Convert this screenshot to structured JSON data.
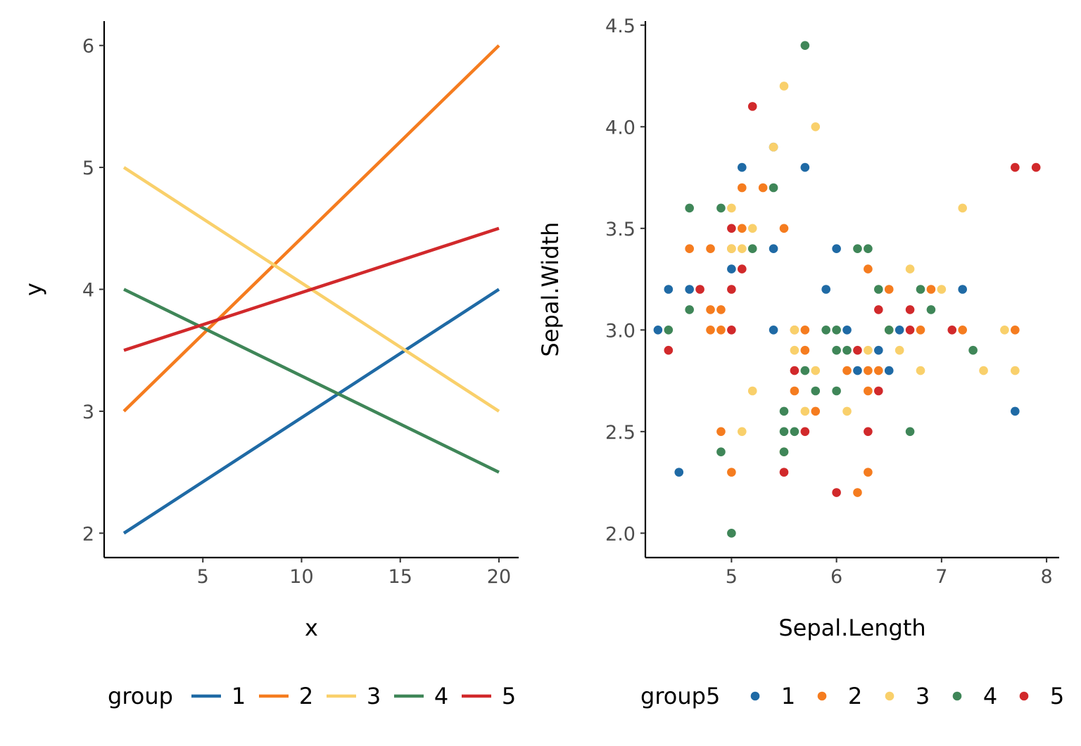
{
  "chart_data": [
    {
      "type": "line",
      "xlabel": "x",
      "ylabel": "y",
      "xlim": [
        0,
        21
      ],
      "ylim": [
        1.8,
        6.2
      ],
      "x_ticks": [
        5,
        10,
        15,
        20
      ],
      "y_ticks": [
        2,
        3,
        4,
        5,
        6
      ],
      "x_tick_labels": [
        "5",
        "10",
        "15",
        "20"
      ],
      "y_tick_labels": [
        "2",
        "3",
        "4",
        "5",
        "6"
      ],
      "grid": false,
      "legend": {
        "title": "group",
        "position": "bottom"
      },
      "x": [
        1,
        20
      ],
      "series": [
        {
          "name": "1",
          "color": "#1f6aa5",
          "values": [
            2.0,
            4.0
          ]
        },
        {
          "name": "2",
          "color": "#f57c1f",
          "values": [
            3.0,
            6.0
          ]
        },
        {
          "name": "3",
          "color": "#f9d06b",
          "values": [
            5.0,
            3.0
          ]
        },
        {
          "name": "4",
          "color": "#3f8658",
          "values": [
            4.0,
            2.5
          ]
        },
        {
          "name": "5",
          "color": "#d1292b",
          "values": [
            3.5,
            4.5
          ]
        }
      ]
    },
    {
      "type": "scatter",
      "xlabel": "Sepal.Length",
      "ylabel": "Sepal.Width",
      "xlim": [
        4.18,
        8.12
      ],
      "ylim": [
        1.88,
        4.52
      ],
      "x_ticks": [
        5,
        6,
        7,
        8
      ],
      "y_ticks": [
        2.0,
        2.5,
        3.0,
        3.5,
        4.0,
        4.5
      ],
      "x_tick_labels": [
        "5",
        "6",
        "7",
        "8"
      ],
      "y_tick_labels": [
        "2.0",
        "2.5",
        "3.0",
        "3.5",
        "4.0",
        "4.5"
      ],
      "grid": false,
      "legend": {
        "title": "group5",
        "position": "bottom"
      },
      "series": [
        {
          "name": "1",
          "color": "#1f6aa5",
          "points": [
            [
              4.3,
              3.0
            ],
            [
              4.4,
              3.2
            ],
            [
              4.5,
              2.3
            ],
            [
              4.6,
              3.2
            ],
            [
              5.0,
              3.3
            ],
            [
              5.1,
              3.8
            ],
            [
              5.4,
              3.0
            ],
            [
              5.4,
              3.4
            ],
            [
              5.4,
              3.9
            ],
            [
              5.7,
              3.8
            ],
            [
              5.9,
              3.2
            ],
            [
              6.0,
              3.4
            ],
            [
              6.1,
              3.0
            ],
            [
              6.2,
              2.8
            ],
            [
              6.4,
              2.9
            ],
            [
              6.5,
              2.8
            ],
            [
              6.6,
              3.0
            ],
            [
              7.2,
              3.2
            ],
            [
              7.7,
              2.6
            ]
          ]
        },
        {
          "name": "2",
          "color": "#f57c1f",
          "points": [
            [
              4.6,
              3.4
            ],
            [
              4.8,
              3.4
            ],
            [
              4.8,
              3.1
            ],
            [
              4.8,
              3.0
            ],
            [
              4.9,
              3.1
            ],
            [
              4.9,
              3.0
            ],
            [
              4.9,
              2.5
            ],
            [
              5.0,
              3.4
            ],
            [
              5.0,
              2.3
            ],
            [
              5.1,
              3.7
            ],
            [
              5.1,
              3.5
            ],
            [
              5.3,
              3.7
            ],
            [
              5.5,
              3.5
            ],
            [
              5.6,
              3.0
            ],
            [
              5.6,
              2.7
            ],
            [
              5.7,
              3.0
            ],
            [
              5.7,
              2.9
            ],
            [
              5.8,
              2.6
            ],
            [
              6.1,
              2.8
            ],
            [
              6.2,
              2.2
            ],
            [
              6.3,
              3.3
            ],
            [
              6.3,
              2.8
            ],
            [
              6.3,
              2.7
            ],
            [
              6.3,
              2.3
            ],
            [
              6.4,
              2.8
            ],
            [
              6.5,
              3.2
            ],
            [
              6.8,
              3.0
            ],
            [
              6.9,
              3.2
            ],
            [
              7.2,
              3.0
            ],
            [
              7.7,
              3.0
            ]
          ]
        },
        {
          "name": "3",
          "color": "#f9d06b",
          "points": [
            [
              5.0,
              3.6
            ],
            [
              5.0,
              3.4
            ],
            [
              5.1,
              3.4
            ],
            [
              5.1,
              2.5
            ],
            [
              5.2,
              3.5
            ],
            [
              5.2,
              2.7
            ],
            [
              5.4,
              3.9
            ],
            [
              5.5,
              4.2
            ],
            [
              5.5,
              2.4
            ],
            [
              5.6,
              3.0
            ],
            [
              5.6,
              2.9
            ],
            [
              5.7,
              2.6
            ],
            [
              5.8,
              4.0
            ],
            [
              5.8,
              2.8
            ],
            [
              6.1,
              2.6
            ],
            [
              6.3,
              2.9
            ],
            [
              6.5,
              3.0
            ],
            [
              6.6,
              2.9
            ],
            [
              6.7,
              3.3
            ],
            [
              6.8,
              2.8
            ],
            [
              7.0,
              3.2
            ],
            [
              7.2,
              3.6
            ],
            [
              7.4,
              2.8
            ],
            [
              7.6,
              3.0
            ],
            [
              7.7,
              2.8
            ]
          ]
        },
        {
          "name": "4",
          "color": "#3f8658",
          "points": [
            [
              4.4,
              3.0
            ],
            [
              4.6,
              3.6
            ],
            [
              4.6,
              3.1
            ],
            [
              4.9,
              3.6
            ],
            [
              4.9,
              2.4
            ],
            [
              5.0,
              2.0
            ],
            [
              5.2,
              3.4
            ],
            [
              5.4,
              3.7
            ],
            [
              5.5,
              2.6
            ],
            [
              5.5,
              2.5
            ],
            [
              5.5,
              2.4
            ],
            [
              5.6,
              2.5
            ],
            [
              5.7,
              4.4
            ],
            [
              5.7,
              2.8
            ],
            [
              5.8,
              2.7
            ],
            [
              5.9,
              3.0
            ],
            [
              6.0,
              3.0
            ],
            [
              6.0,
              2.9
            ],
            [
              6.0,
              2.7
            ],
            [
              6.1,
              2.9
            ],
            [
              6.2,
              3.4
            ],
            [
              6.3,
              3.4
            ],
            [
              6.4,
              3.2
            ],
            [
              6.5,
              3.0
            ],
            [
              6.7,
              2.5
            ],
            [
              6.8,
              3.2
            ],
            [
              6.9,
              3.1
            ],
            [
              7.3,
              2.9
            ]
          ]
        },
        {
          "name": "5",
          "color": "#d1292b",
          "points": [
            [
              4.4,
              2.9
            ],
            [
              4.7,
              3.2
            ],
            [
              5.0,
              3.5
            ],
            [
              5.0,
              3.2
            ],
            [
              5.0,
              3.0
            ],
            [
              5.1,
              3.3
            ],
            [
              5.2,
              4.1
            ],
            [
              5.5,
              2.3
            ],
            [
              5.6,
              2.8
            ],
            [
              5.7,
              2.5
            ],
            [
              6.0,
              2.2
            ],
            [
              6.2,
              2.9
            ],
            [
              6.3,
              2.5
            ],
            [
              6.4,
              3.1
            ],
            [
              6.4,
              2.7
            ],
            [
              6.7,
              3.1
            ],
            [
              6.7,
              3.0
            ],
            [
              7.1,
              3.0
            ],
            [
              7.7,
              3.8
            ],
            [
              7.9,
              3.8
            ]
          ]
        }
      ]
    }
  ]
}
